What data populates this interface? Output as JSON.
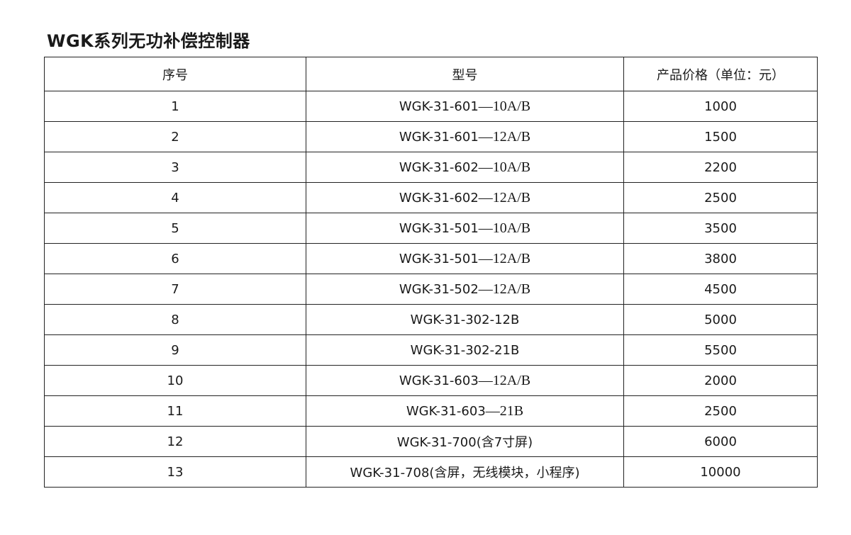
{
  "title": "WGK系列无功补偿控制器",
  "headers": [
    "序号",
    "型号",
    "产品价格（单位：元）"
  ],
  "rows": [
    {
      "no": "1",
      "model": "WGK-31-601",
      "model_suffix": "—10A/B",
      "price": "1000"
    },
    {
      "no": "2",
      "model": "WGK-31-601",
      "model_suffix": "—12A/B",
      "price": "1500"
    },
    {
      "no": "3",
      "model": "WGK-31-602",
      "model_suffix": "—10A/B",
      "price": "2200"
    },
    {
      "no": "4",
      "model": "WGK-31-602",
      "model_suffix": "—12A/B",
      "price": "2500"
    },
    {
      "no": "5",
      "model": "WGK-31-501",
      "model_suffix": "—10A/B",
      "price": "3500"
    },
    {
      "no": "6",
      "model": "WGK-31-501",
      "model_suffix": "—12A/B",
      "price": "3800"
    },
    {
      "no": "7",
      "model": "WGK-31-502",
      "model_suffix": "—12A/B",
      "price": "4500"
    },
    {
      "no": "8",
      "model": "WGK-31-302-12B",
      "model_suffix": "",
      "price": "5000"
    },
    {
      "no": "9",
      "model": "WGK-31-302-21B",
      "model_suffix": "",
      "price": "5500"
    },
    {
      "no": "10",
      "model": "WGK-31-603",
      "model_suffix": "—12A/B",
      "price": "2000"
    },
    {
      "no": "11",
      "model": "WGK-31-603",
      "model_suffix": "—21B",
      "price": "2500"
    },
    {
      "no": "12",
      "model": "WGK-31-700(含7寸屏)",
      "model_suffix": "",
      "price": "6000"
    },
    {
      "no": "13",
      "model": "WGK-31-708(含屏，无线模块，小程序)",
      "model_suffix": "",
      "price": "10000"
    }
  ]
}
